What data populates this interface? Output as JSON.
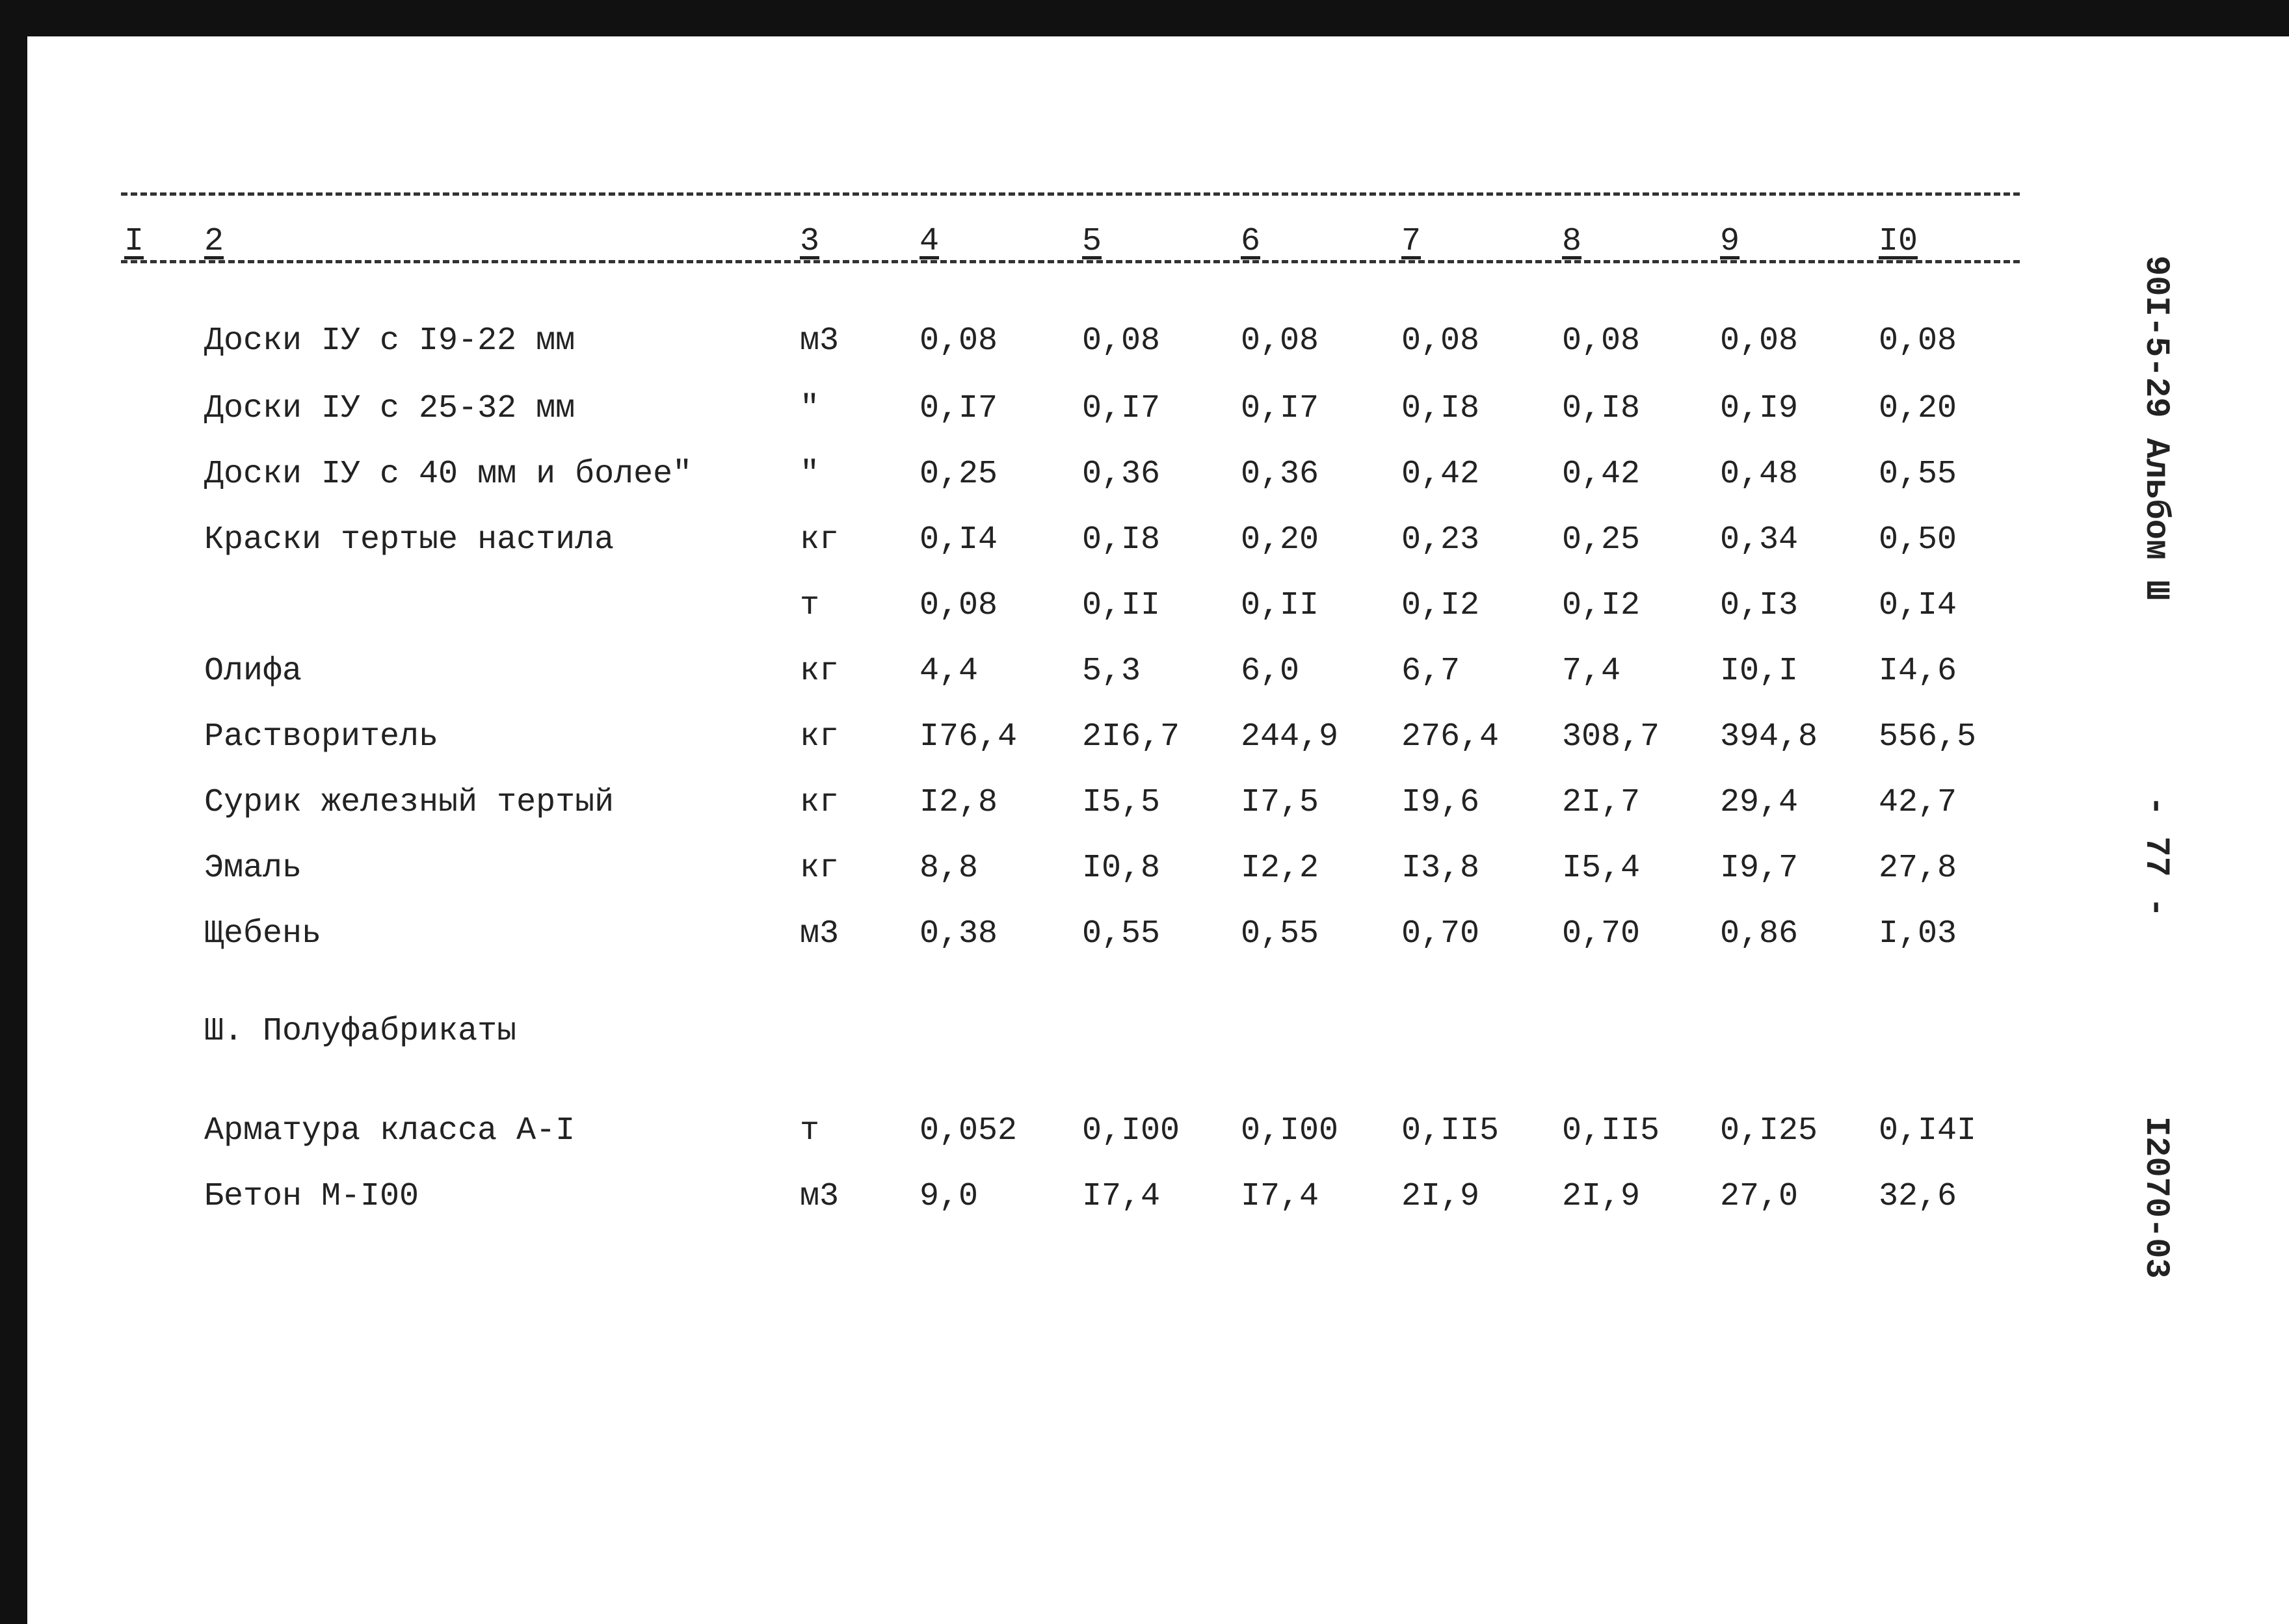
{
  "header": {
    "columns": [
      "I",
      "2",
      "3",
      "4",
      "5",
      "6",
      "7",
      "8",
      "9",
      "I0"
    ]
  },
  "table": {
    "rows": [
      {
        "name": "Доски IУ с I9-22 мм",
        "unit": "м3",
        "values": [
          "0,08",
          "0,08",
          "0,08",
          "0,08",
          "0,08",
          "0,08",
          "0,08"
        ]
      },
      {
        "name": "Доски IУ с 25-32 мм",
        "unit": "\"",
        "values": [
          "0,I7",
          "0,I7",
          "0,I7",
          "0,I8",
          "0,I8",
          "0,I9",
          "0,20"
        ]
      },
      {
        "name": "Доски IУ с 40 мм и более\"",
        "unit": "\"",
        "values": [
          "0,25",
          "0,36",
          "0,36",
          "0,42",
          "0,42",
          "0,48",
          "0,55"
        ]
      },
      {
        "name": "Краски тертые настила",
        "unit": "кг",
        "values": [
          "0,I4",
          "0,I8",
          "0,20",
          "0,23",
          "0,25",
          "0,34",
          "0,50"
        ]
      },
      {
        "unit": "т",
        "values": [
          "0,08",
          "0,II",
          "0,II",
          "0,I2",
          "0,I2",
          "0,I3",
          "0,I4"
        ]
      },
      {
        "name": "Олифа",
        "unit": "кг",
        "values": [
          "4,4",
          "5,3",
          "6,0",
          "6,7",
          "7,4",
          "I0,I",
          "I4,6"
        ]
      },
      {
        "name": "Растворитель",
        "unit": "кг",
        "values": [
          "I76,4",
          "2I6,7",
          "244,9",
          "276,4",
          "308,7",
          "394,8",
          "556,5"
        ]
      },
      {
        "name": "Сурик железный тертый",
        "unit": "кг",
        "values": [
          "I2,8",
          "I5,5",
          "I7,5",
          "I9,6",
          "2I,7",
          "29,4",
          "42,7"
        ]
      },
      {
        "name": "Эмаль",
        "unit": "кг",
        "values": [
          "8,8",
          "I0,8",
          "I2,2",
          "I3,8",
          "I5,4",
          "I9,7",
          "27,8"
        ]
      },
      {
        "name": "Щебень",
        "unit": "м3",
        "values": [
          "0,38",
          "0,55",
          "0,55",
          "0,70",
          "0,70",
          "0,86",
          "I,03"
        ]
      }
    ]
  },
  "section": {
    "title": "Ш. Полуфабрикаты",
    "rows": [
      {
        "name": "Арматура класса А-I",
        "unit": "т",
        "values": [
          "0,052",
          "0,I00",
          "0,I00",
          "0,II5",
          "0,II5",
          "0,I25",
          "0,I4I"
        ]
      },
      {
        "name": "Бетон М-I00",
        "unit": "м3",
        "values": [
          "9,0",
          "I7,4",
          "I7,4",
          "2I,9",
          "2I,9",
          "27,0",
          "32,6"
        ]
      }
    ]
  },
  "side": {
    "album": "90I-5-29 Альбом Ш",
    "page": "- 77 -",
    "code": "I2070-03"
  }
}
